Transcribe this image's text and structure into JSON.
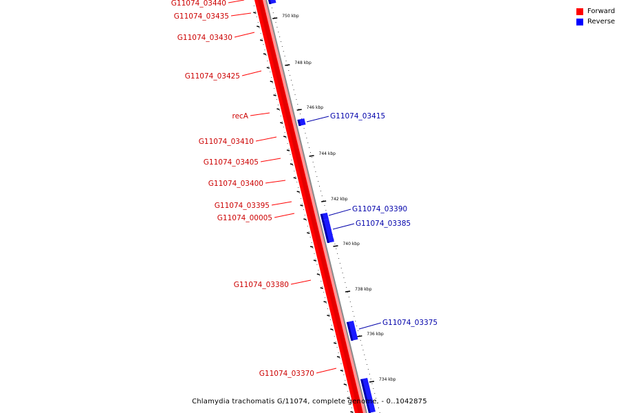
{
  "legend": {
    "items": [
      {
        "label": "Forward",
        "color": "#ff0000"
      },
      {
        "label": "Reverse",
        "color": "#0000ff"
      }
    ]
  },
  "caption": "Chlamydia trachomatis G/11074, complete genome. - 0..1042875",
  "colors": {
    "forward": "#ff0000",
    "forward_dark": "#cc0000",
    "reverse": "#1a1aff",
    "reverse_dark": "#0000aa",
    "ruler": "#000000"
  },
  "scale_ticks": [
    "750 kbp",
    "748 kbp",
    "746 kbp",
    "744 kbp",
    "742 kbp",
    "740 kbp",
    "738 kbp",
    "736 kbp",
    "734 kbp"
  ],
  "forward_genes": [
    "G11074_03440",
    "G11074_03435",
    "G11074_03430",
    "G11074_03425",
    "recA",
    "G11074_03410",
    "G11074_03405",
    "G11074_03400",
    "G11074_03395",
    "G11074_00005",
    "G11074_03380",
    "G11074_03370"
  ],
  "reverse_genes": [
    "G11074_03415",
    "G11074_03390",
    "G11074_03385",
    "G11074_03375"
  ]
}
